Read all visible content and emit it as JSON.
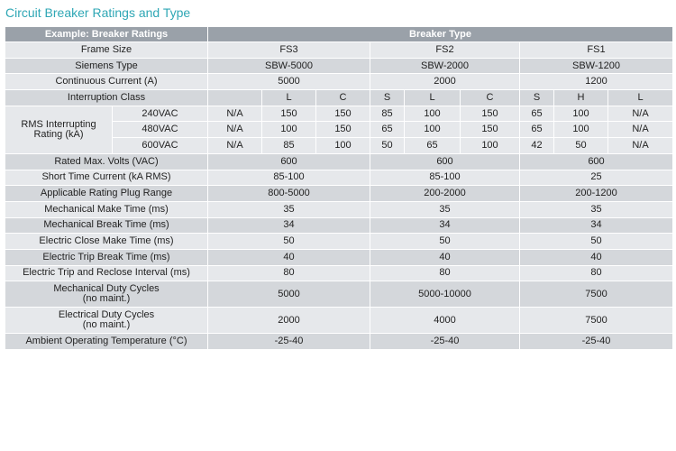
{
  "title": "Circuit Breaker Ratings and Type",
  "header": {
    "left": "Example: Breaker Ratings",
    "right": "Breaker Type"
  },
  "rows": {
    "frame_size": {
      "label": "Frame Size",
      "fs3": "FS3",
      "fs2": "FS2",
      "fs1": "FS1"
    },
    "siemens_type": {
      "label": "Siemens Type",
      "fs3": "SBW-5000",
      "fs2": "SBW-2000",
      "fs1": "SBW-1200"
    },
    "continuous_current": {
      "label": "Continuous Current (A)",
      "fs3": "5000",
      "fs2": "2000",
      "fs1": "1200"
    },
    "interruption_class": {
      "label": "Interruption Class",
      "classes": [
        "",
        "L",
        "C",
        "S",
        "L",
        "C",
        "S",
        "H",
        "L"
      ]
    },
    "rms": {
      "label_line1": "RMS Interrupting",
      "label_line2": "Rating (kA)",
      "v240": {
        "label": "240VAC",
        "values": [
          "N/A",
          "150",
          "150",
          "85",
          "100",
          "150",
          "65",
          "100",
          "N/A"
        ]
      },
      "v480": {
        "label": "480VAC",
        "values": [
          "N/A",
          "100",
          "150",
          "65",
          "100",
          "150",
          "65",
          "100",
          "N/A"
        ]
      },
      "v600": {
        "label": "600VAC",
        "values": [
          "N/A",
          "85",
          "100",
          "50",
          "65",
          "100",
          "42",
          "50",
          "N/A"
        ]
      }
    },
    "rated_volts": {
      "label": "Rated Max. Volts (VAC)",
      "fs3": "600",
      "fs2": "600",
      "fs1": "600"
    },
    "short_time": {
      "label": "Short Time Current (kA RMS)",
      "fs3": "85-100",
      "fs2": "85-100",
      "fs1": "25"
    },
    "plug_range": {
      "label": "Applicable Rating Plug Range",
      "fs3": "800-5000",
      "fs2": "200-2000",
      "fs1": "200-1200"
    },
    "mech_make": {
      "label": "Mechanical Make Time (ms)",
      "fs3": "35",
      "fs2": "35",
      "fs1": "35"
    },
    "mech_break": {
      "label": "Mechanical Break Time (ms)",
      "fs3": "34",
      "fs2": "34",
      "fs1": "34"
    },
    "elec_close": {
      "label": "Electric Close Make Time (ms)",
      "fs3": "50",
      "fs2": "50",
      "fs1": "50"
    },
    "elec_trip": {
      "label": "Electric Trip Break Time (ms)",
      "fs3": "40",
      "fs2": "40",
      "fs1": "40"
    },
    "trip_reclose": {
      "label": "Electric Trip and Reclose Interval (ms)",
      "fs3": "80",
      "fs2": "80",
      "fs1": "80"
    },
    "mech_duty": {
      "label_line1": "Mechanical Duty Cycles",
      "label_line2": "(no maint.)",
      "fs3": "5000",
      "fs2": "5000-10000",
      "fs1": "7500"
    },
    "elec_duty": {
      "label_line1": "Electrical Duty Cycles",
      "label_line2": "(no maint.)",
      "fs3": "2000",
      "fs2": "4000",
      "fs1": "7500"
    },
    "ambient": {
      "label": "Ambient Operating Temperature (°C)",
      "fs3": "-25-40",
      "fs2": "-25-40",
      "fs1": "-25-40"
    }
  }
}
